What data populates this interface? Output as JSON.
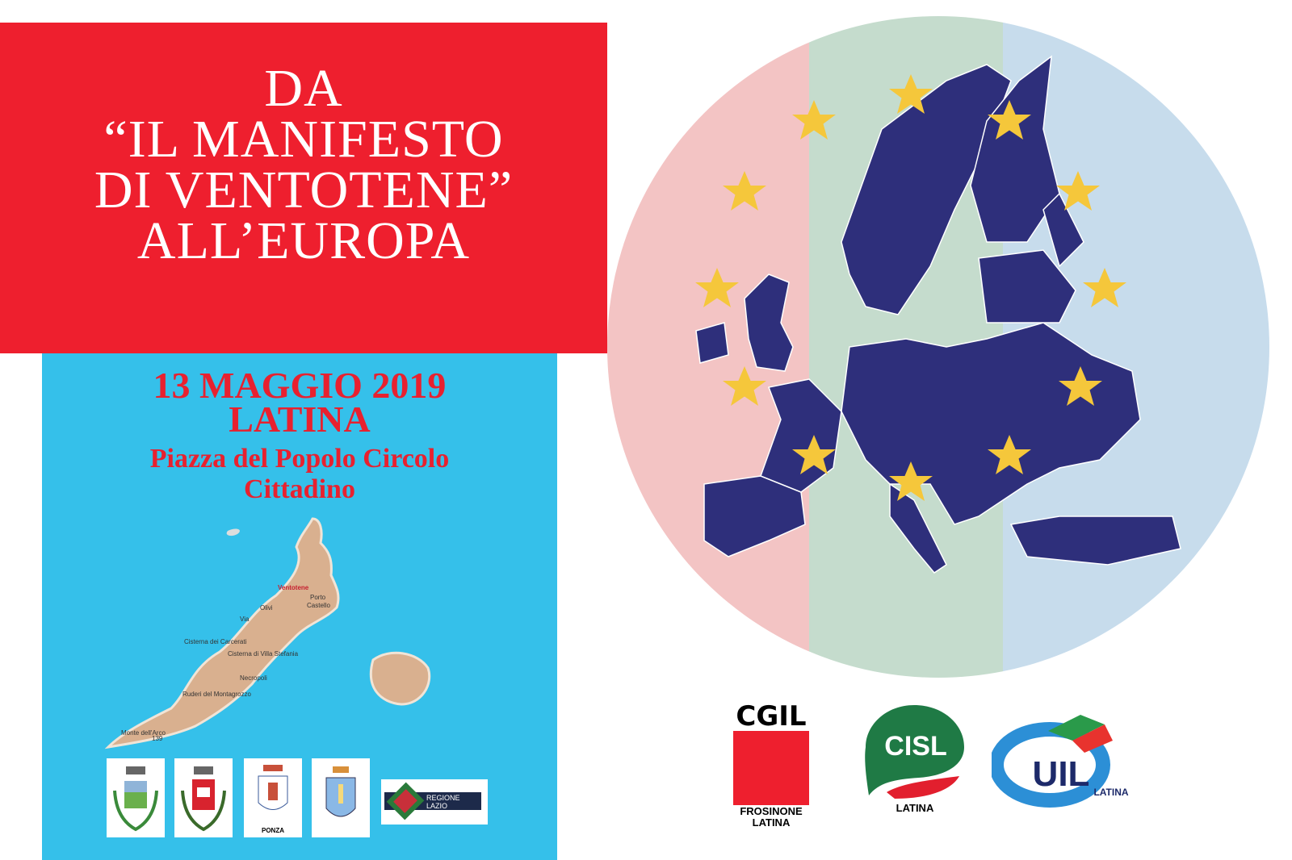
{
  "title": {
    "lines": [
      "DA",
      "“IL MANIFESTO",
      "DI VENTOTENE”",
      "ALL’EUROPA"
    ]
  },
  "event": {
    "date": "13 MAGGIO 2019",
    "city": "LATINA",
    "venue_line1": "Piazza del Popolo Circolo",
    "venue_line2": "Cittadino"
  },
  "island_map": {
    "labels": {
      "town": "Ventotene",
      "porto": "Porto",
      "castello": "Castello",
      "via": "Via",
      "olivi": "Olivi",
      "cisterna_carcerati": "Cisterna dei Carcerati",
      "cisterna_villa": "Cisterna di Villa Stefania",
      "necropoli": "Necropoli",
      "ruderi": "Ruderi del Montagrozzo",
      "monte": "Monte dell'Arco",
      "elevation": "139"
    }
  },
  "sponsors": {
    "crest_ponza_label": "PONZA",
    "regione_lazio": [
      "REGIONE",
      "LAZIO"
    ]
  },
  "unions": {
    "cgil": {
      "name": "CGIL",
      "sub1": "FROSINONE",
      "sub2": "LATINA"
    },
    "cisl": {
      "name": "CISL",
      "sub": "LATINA"
    },
    "uil": {
      "name": "UIL",
      "sub": "LATINA"
    }
  },
  "colors": {
    "red": "#ee1f2e",
    "cyan": "#35c0ea",
    "navy": "#2e2f7b",
    "star": "#f5c73b"
  }
}
